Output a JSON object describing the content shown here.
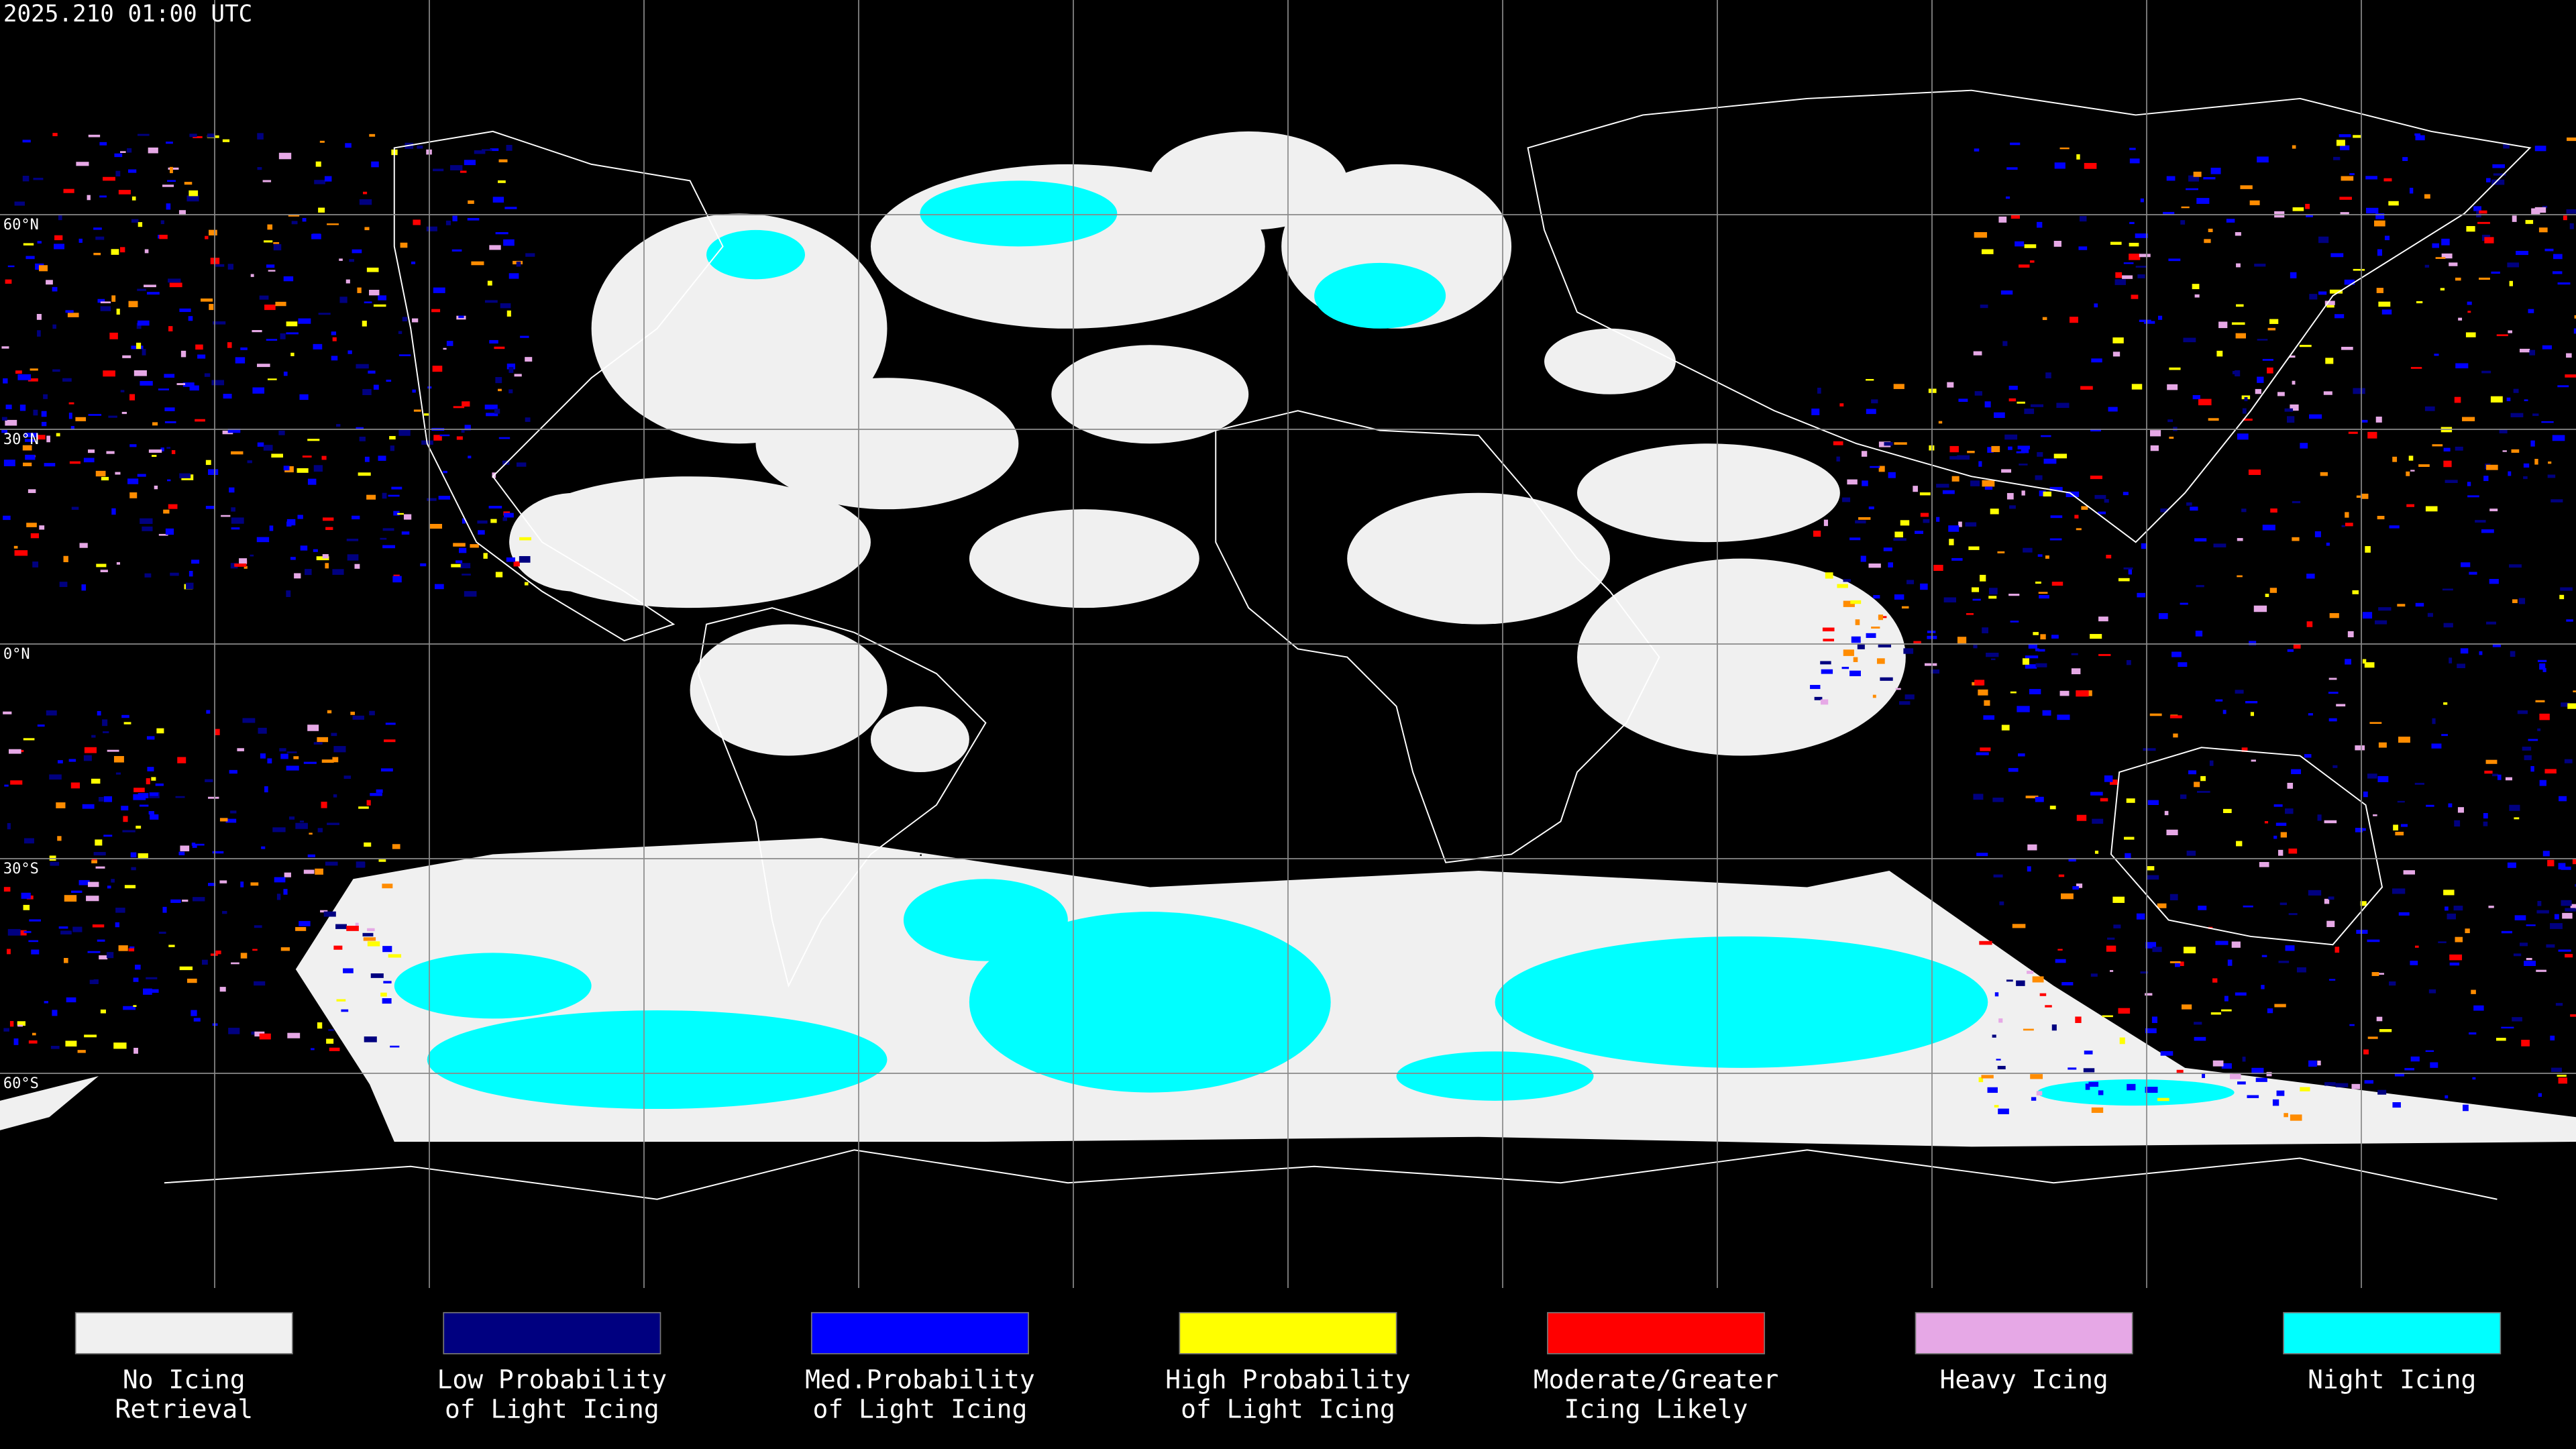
{
  "map": {
    "timestamp": "2025.210 01:00 UTC",
    "latitude_labels": [
      "60°N",
      "30°N",
      "0°N",
      "30°S",
      "60°S"
    ]
  },
  "legend": [
    {
      "color": "#f0f0f0",
      "lines": [
        "No Icing",
        "Retrieval"
      ]
    },
    {
      "color": "#000080",
      "lines": [
        "Low Probability",
        "of Light Icing"
      ]
    },
    {
      "color": "#0000ff",
      "lines": [
        "Med.Probability",
        "of Light Icing"
      ]
    },
    {
      "color": "#ffff00",
      "lines": [
        "High Probability",
        "of Light Icing"
      ]
    },
    {
      "color": "#ff0000",
      "lines": [
        "Moderate/Greater",
        "Icing Likely"
      ]
    },
    {
      "color": "#e6a8e6",
      "lines": [
        "Heavy Icing"
      ]
    },
    {
      "color": "#00ffff",
      "lines": [
        "Night Icing"
      ]
    }
  ]
}
